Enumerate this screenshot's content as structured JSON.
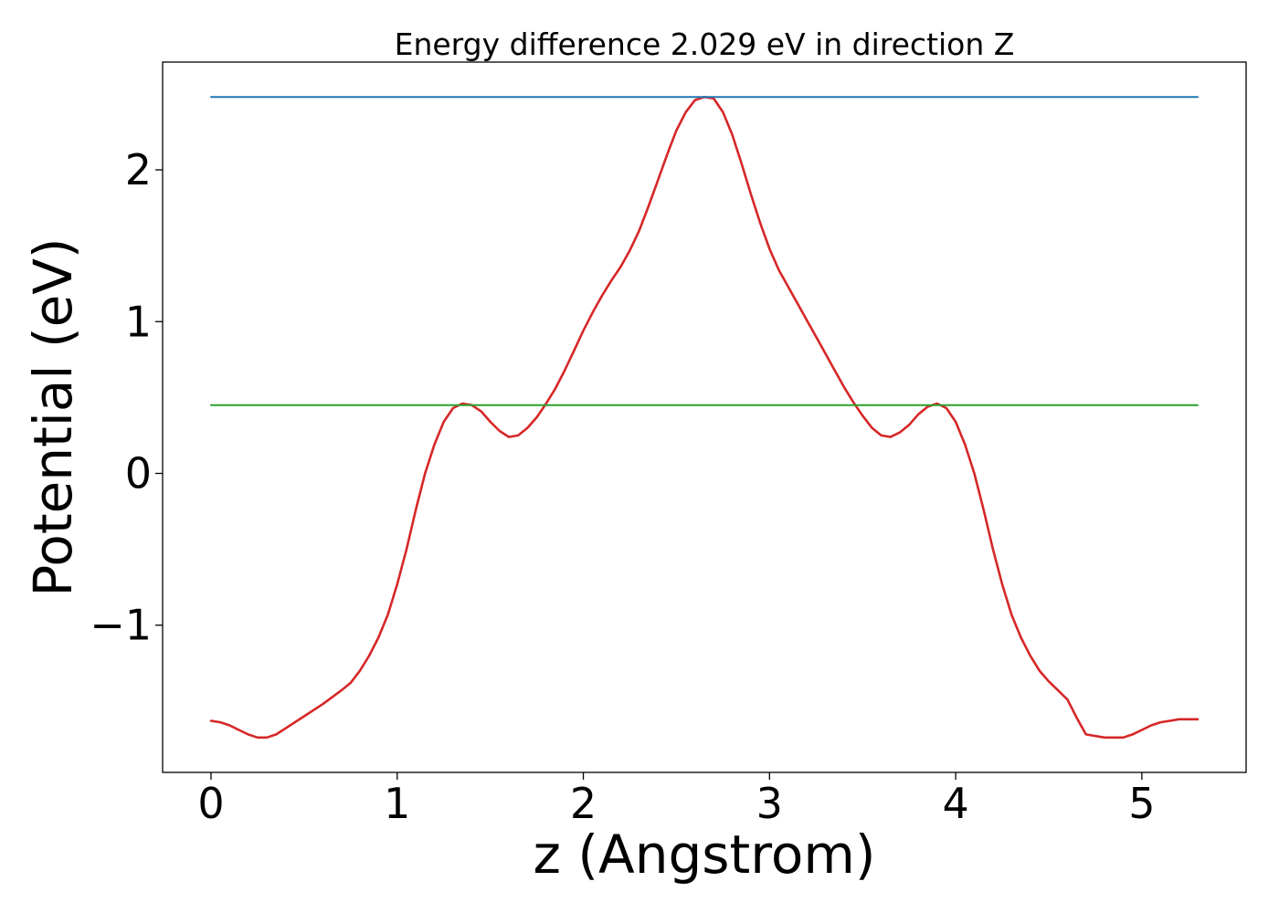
{
  "chart_data": {
    "type": "line",
    "title": "Energy difference 2.029 eV in direction Z",
    "xlabel": "z (Angstrom)",
    "ylabel": "Potential (eV)",
    "xlim": [
      -0.26,
      5.56
    ],
    "ylim": [
      -1.97,
      2.71
    ],
    "xticks": [
      0,
      1,
      2,
      3,
      4,
      5
    ],
    "xtick_labels": [
      "0",
      "1",
      "2",
      "3",
      "4",
      "5"
    ],
    "yticks": [
      -1,
      0,
      1,
      2
    ],
    "ytick_labels": [
      "−1",
      "0",
      "1",
      "2"
    ],
    "grid": false,
    "legend": "none",
    "series": [
      {
        "color": "#d62728",
        "x": [
          0,
          0.05,
          0.1,
          0.15,
          0.2,
          0.25,
          0.3,
          0.35,
          0.4,
          0.5,
          0.6,
          0.7,
          0.75,
          0.8,
          0.85,
          0.9,
          0.95,
          1.0,
          1.05,
          1.1,
          1.15,
          1.2,
          1.25,
          1.3,
          1.35,
          1.4,
          1.45,
          1.5,
          1.55,
          1.6,
          1.65,
          1.7,
          1.75,
          1.8,
          1.85,
          1.9,
          1.95,
          2.0,
          2.05,
          2.1,
          2.15,
          2.2,
          2.25,
          2.3,
          2.35,
          2.4,
          2.45,
          2.5,
          2.55,
          2.6,
          2.65,
          2.7,
          2.75,
          2.8,
          2.85,
          2.9,
          2.95,
          3.0,
          3.05,
          3.1,
          3.15,
          3.2,
          3.25,
          3.3,
          3.35,
          3.4,
          3.45,
          3.5,
          3.55,
          3.6,
          3.65,
          3.7,
          3.75,
          3.8,
          3.85,
          3.9,
          3.95,
          4.0,
          4.05,
          4.1,
          4.15,
          4.2,
          4.25,
          4.3,
          4.35,
          4.4,
          4.45,
          4.5,
          4.55,
          4.6,
          4.65,
          4.7,
          4.8,
          4.9,
          4.95,
          5.0,
          5.05,
          5.1,
          5.15,
          5.2,
          5.25,
          5.3
        ],
        "values": [
          -1.63,
          -1.64,
          -1.66,
          -1.69,
          -1.72,
          -1.74,
          -1.74,
          -1.72,
          -1.68,
          -1.6,
          -1.52,
          -1.43,
          -1.38,
          -1.3,
          -1.2,
          -1.08,
          -0.93,
          -0.73,
          -0.5,
          -0.24,
          0.0,
          0.19,
          0.34,
          0.43,
          0.46,
          0.45,
          0.41,
          0.34,
          0.28,
          0.24,
          0.25,
          0.3,
          0.37,
          0.46,
          0.56,
          0.68,
          0.81,
          0.94,
          1.06,
          1.17,
          1.27,
          1.36,
          1.47,
          1.6,
          1.76,
          1.93,
          2.1,
          2.26,
          2.38,
          2.46,
          2.48,
          2.47,
          2.38,
          2.23,
          2.04,
          1.84,
          1.65,
          1.48,
          1.34,
          1.23,
          1.12,
          1.01,
          0.9,
          0.79,
          0.68,
          0.57,
          0.47,
          0.38,
          0.3,
          0.25,
          0.24,
          0.27,
          0.32,
          0.39,
          0.44,
          0.46,
          0.43,
          0.34,
          0.19,
          0.0,
          -0.24,
          -0.5,
          -0.73,
          -0.93,
          -1.08,
          -1.2,
          -1.3,
          -1.37,
          -1.43,
          -1.49,
          -1.61,
          -1.72,
          -1.74,
          -1.74,
          -1.72,
          -1.69,
          -1.66,
          -1.64,
          -1.63,
          -1.62,
          -1.62,
          -1.62
        ]
      },
      {
        "color": "#1f77b4",
        "x": [
          0,
          5.3
        ],
        "values": [
          2.48,
          2.48
        ]
      },
      {
        "color": "#2ca02c",
        "x": [
          0,
          5.3
        ],
        "values": [
          0.45,
          0.45
        ]
      }
    ]
  }
}
